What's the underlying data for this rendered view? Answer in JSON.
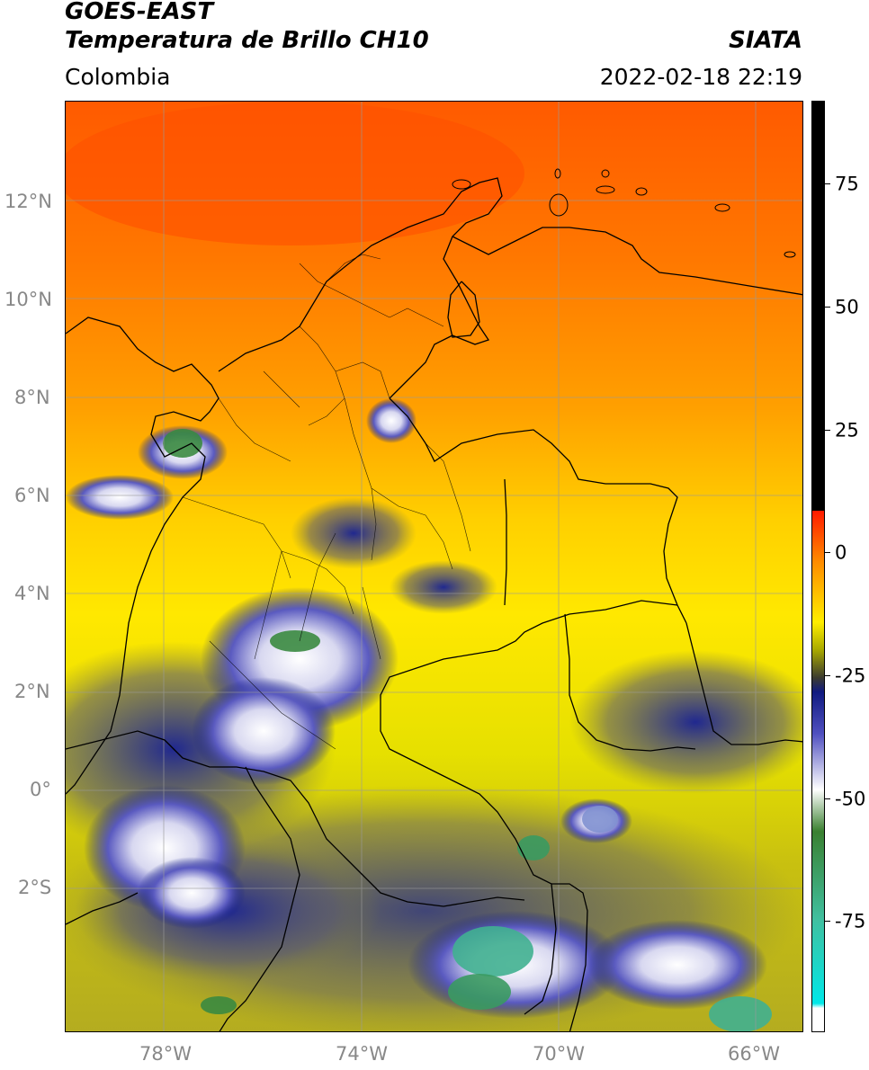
{
  "header": {
    "title_line1": "GOES-EAST",
    "title_line2": "Temperatura de Brillo CH10",
    "subtitle": "Colombia",
    "source": "SIATA",
    "timestamp": "2022-02-18 22:19"
  },
  "map": {
    "lat_labels": [
      "12°N",
      "10°N",
      "8°N",
      "6°N",
      "4°N",
      "2°N",
      "0°",
      "2°S"
    ],
    "lon_labels": [
      "78°W",
      "74°W",
      "70°W",
      "66°W"
    ],
    "gridlines": true
  },
  "colorbar": {
    "tick_labels": [
      "75",
      "50",
      "25",
      "0",
      "-25",
      "-50",
      "-75"
    ],
    "colors": {
      "black": "#000000",
      "red": "#ff1a00",
      "orange": "#ff8c00",
      "yellow": "#ffee00",
      "olive": "#a8a800",
      "gray": "#3a3a30",
      "navy": "#101a80",
      "blue": "#5050c0",
      "white": "#ffffff",
      "green": "#3a8030",
      "teal": "#40c0a0",
      "cyan": "#00e8e8"
    }
  }
}
